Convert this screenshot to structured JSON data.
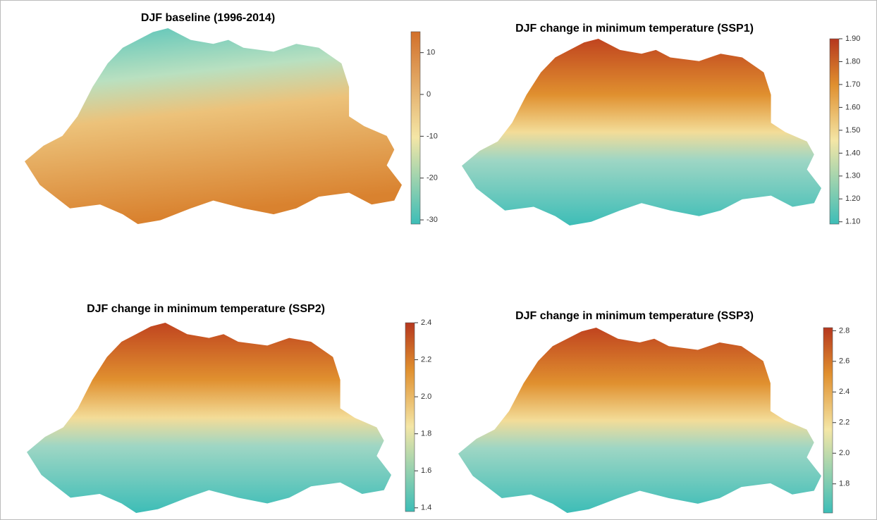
{
  "maps": [
    {
      "title": "DJF baseline (1996-2014)",
      "colorbar": {
        "lim": [
          -31,
          15
        ],
        "ticks": [
          10,
          0,
          -10,
          -20,
          -30
        ]
      }
    },
    {
      "title": "DJF change in minimum temperature (SSP1)",
      "colorbar": {
        "lim": [
          1.09,
          1.9
        ],
        "ticks": [
          {
            "value": 1.9,
            "label": "1.90"
          },
          {
            "value": 1.8,
            "label": "1.80"
          },
          {
            "value": 1.7,
            "label": "1.70"
          },
          {
            "value": 1.6,
            "label": "1.60"
          },
          {
            "value": 1.5,
            "label": "1.50"
          },
          {
            "value": 1.4,
            "label": "1.40"
          },
          {
            "value": 1.3,
            "label": "1.30"
          },
          {
            "value": 1.2,
            "label": "1.20"
          },
          {
            "value": 1.1,
            "label": "1.10"
          }
        ]
      }
    },
    {
      "title": "DJF change in minimum temperature (SSP2)",
      "colorbar": {
        "lim": [
          1.38,
          2.4
        ],
        "ticks": [
          2.4,
          2.2,
          {
            "value": 2,
            "label": "2.0"
          },
          1.8,
          1.6,
          1.4
        ]
      }
    },
    {
      "title": "DJF change in minimum temperature (SSP3)",
      "colorbar": {
        "lim": [
          1.61,
          2.82
        ],
        "ticks": [
          2.8,
          2.6,
          2.4,
          2.2,
          {
            "value": 2,
            "label": "2.0"
          },
          1.8
        ]
      }
    }
  ]
}
